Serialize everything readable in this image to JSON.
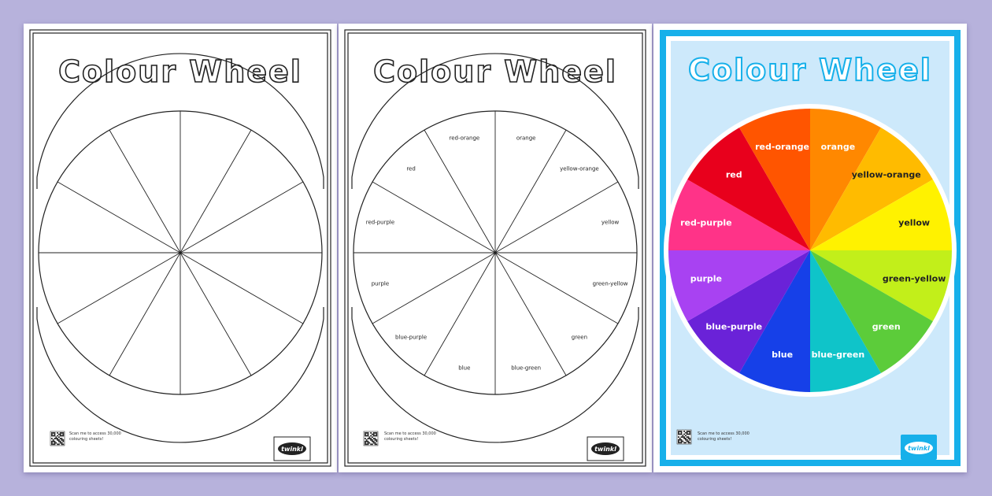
{
  "title": "Colour Wheel",
  "qr_caption_line1": "Scan me to access 30,000",
  "qr_caption_line2": "colouring sheets!",
  "logo_text": "twinkl",
  "segments": [
    {
      "label": "orange",
      "color": "#ff8800",
      "text_color": "#ffffff"
    },
    {
      "label": "yellow-orange",
      "color": "#ffbb00",
      "text_color": "#222222"
    },
    {
      "label": "yellow",
      "color": "#fff200",
      "text_color": "#222222"
    },
    {
      "label": "green-yellow",
      "color": "#c2ef1a",
      "text_color": "#222222"
    },
    {
      "label": "green",
      "color": "#5ccc3a",
      "text_color": "#ffffff"
    },
    {
      "label": "blue-green",
      "color": "#0fc4c9",
      "text_color": "#ffffff"
    },
    {
      "label": "blue",
      "color": "#1640e8",
      "text_color": "#ffffff"
    },
    {
      "label": "blue-purple",
      "color": "#6a22d8",
      "text_color": "#ffffff"
    },
    {
      "label": "purple",
      "color": "#a842f2",
      "text_color": "#ffffff"
    },
    {
      "label": "red-purple",
      "color": "#ff3388",
      "text_color": "#ffffff"
    },
    {
      "label": "red",
      "color": "#e8001c",
      "text_color": "#ffffff"
    },
    {
      "label": "red-orange",
      "color": "#ff5500",
      "text_color": "#ffffff"
    }
  ],
  "colors": {
    "background": "#b7b2dc",
    "accent_blue": "#17b0ea",
    "poster_panel": "#cde9fb"
  }
}
